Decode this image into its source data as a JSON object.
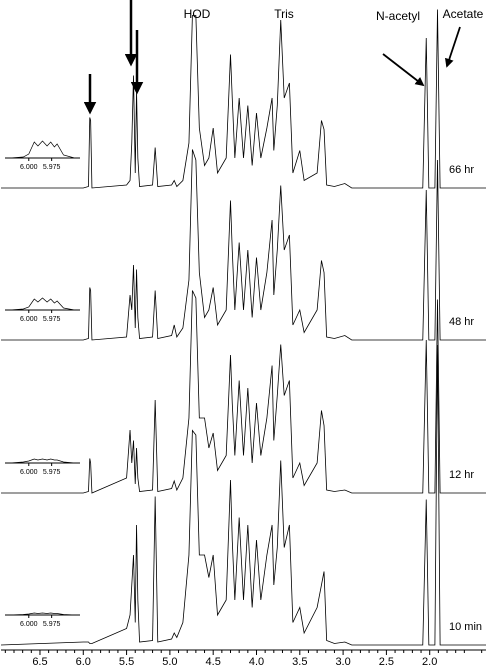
{
  "chart_data": {
    "type": "line",
    "annotations": [
      "HOD",
      "Tris",
      "N-acetyl",
      "Acetate"
    ],
    "xlim": [
      6.95,
      1.35
    ],
    "xticks": [
      6.5,
      {
        "value": 6,
        "label": "6.0"
      },
      5.5,
      {
        "value": 5,
        "label": "5.0"
      },
      4.5,
      {
        "value": 4,
        "label": "4.0"
      },
      3.5,
      {
        "value": 3,
        "label": "3.0"
      },
      2.5,
      {
        "value": 2,
        "label": "2.0"
      }
    ],
    "ylim": [
      0,
      100
    ],
    "inset": {
      "xlim": [
        6.026,
        5.944
      ],
      "ylim": [
        0,
        20
      ],
      "xticks": [
        {
          "value": 6,
          "label": "6.000"
        },
        5.975
      ],
      "x": [
        6.02,
        6.006,
        6.0,
        5.997,
        5.994,
        5.99,
        5.985,
        5.98,
        5.976,
        5.972,
        5.969,
        5.962,
        5.95
      ]
    },
    "series": [
      {
        "name": "66 hr",
        "color": "#000000",
        "x": [
          6.95,
          6.0,
          5.94,
          5.925,
          5.915,
          5.9,
          5.5,
          5.46,
          5.44,
          5.42,
          5.4,
          5.385,
          5.37,
          5.35,
          5.2,
          5.17,
          5.14,
          4.98,
          4.95,
          4.92,
          4.85,
          4.78,
          4.74,
          4.7,
          4.66,
          4.6,
          4.55,
          4.5,
          4.45,
          4.35,
          4.3,
          4.28,
          4.25,
          4.2,
          4.15,
          4.1,
          4.05,
          4.0,
          3.95,
          3.88,
          3.82,
          3.8,
          3.76,
          3.72,
          3.68,
          3.62,
          3.58,
          3.5,
          3.45,
          3.3,
          3.25,
          3.22,
          3.19,
          3.1,
          2.98,
          2.9,
          2.08,
          2.04,
          2.01,
          1.94,
          1.91,
          1.88,
          1.35
        ],
        "values": [
          0,
          0,
          1,
          47,
          45,
          0,
          2,
          5,
          30,
          75,
          10,
          65,
          20,
          1,
          2,
          27,
          1,
          2,
          5,
          1,
          5,
          30,
          115,
          115,
          40,
          15,
          20,
          40,
          10,
          20,
          89,
          60,
          20,
          60,
          20,
          55,
          15,
          50,
          20,
          40,
          60,
          25,
          55,
          112,
          60,
          70,
          10,
          25,
          5,
          10,
          45,
          39,
          2,
          1,
          3,
          0,
          0,
          100,
          0,
          0,
          119,
          0,
          0
        ],
        "inset_values": [
          0,
          1,
          4,
          10,
          16,
          12,
          17,
          12,
          16,
          11,
          14,
          3,
          0
        ]
      },
      {
        "name": "48 hr",
        "color": "#000000",
        "x": [
          6.95,
          6.0,
          5.94,
          5.925,
          5.915,
          5.9,
          5.5,
          5.46,
          5.44,
          5.42,
          5.4,
          5.385,
          5.37,
          5.35,
          5.2,
          5.17,
          5.14,
          4.98,
          4.95,
          4.92,
          4.85,
          4.78,
          4.74,
          4.7,
          4.66,
          4.6,
          4.55,
          4.5,
          4.45,
          4.35,
          4.3,
          4.28,
          4.25,
          4.2,
          4.15,
          4.1,
          4.05,
          4.0,
          3.95,
          3.88,
          3.82,
          3.8,
          3.76,
          3.72,
          3.68,
          3.62,
          3.58,
          3.5,
          3.45,
          3.3,
          3.25,
          3.22,
          3.19,
          3.1,
          2.98,
          2.9,
          2.08,
          2.04,
          2.01,
          1.94,
          1.91,
          1.88,
          1.35
        ],
        "values": [
          0,
          0,
          1,
          35,
          33,
          0,
          2,
          30,
          20,
          50,
          8,
          47,
          15,
          1,
          2,
          33,
          1,
          3,
          10,
          2,
          8,
          40,
          127,
          120,
          45,
          15,
          20,
          35,
          10,
          20,
          93,
          60,
          20,
          65,
          20,
          60,
          15,
          55,
          20,
          45,
          80,
          30,
          60,
          103,
          60,
          70,
          10,
          20,
          5,
          20,
          53,
          45,
          2,
          1,
          3,
          0,
          0,
          100,
          0,
          0,
          120,
          0,
          0
        ],
        "inset_values": [
          0,
          1,
          3,
          7,
          11,
          8,
          12,
          8,
          11,
          7,
          9,
          2,
          0
        ]
      },
      {
        "name": "12 hr",
        "color": "#000000",
        "x": [
          6.95,
          6.0,
          5.94,
          5.925,
          5.915,
          5.9,
          5.5,
          5.46,
          5.44,
          5.42,
          5.4,
          5.385,
          5.37,
          5.35,
          5.2,
          5.17,
          5.14,
          4.98,
          4.95,
          4.92,
          4.85,
          4.78,
          4.74,
          4.7,
          4.66,
          4.6,
          4.55,
          4.5,
          4.45,
          4.35,
          4.3,
          4.28,
          4.25,
          4.2,
          4.15,
          4.1,
          4.05,
          4.0,
          3.95,
          3.88,
          3.82,
          3.8,
          3.76,
          3.72,
          3.68,
          3.62,
          3.58,
          3.5,
          3.45,
          3.3,
          3.25,
          3.22,
          3.19,
          3.1,
          2.98,
          2.9,
          2.08,
          2.04,
          2.01,
          1.94,
          1.91,
          1.88,
          1.35
        ],
        "values": [
          0,
          0,
          1,
          23,
          20,
          0,
          10,
          42,
          20,
          35,
          6,
          30,
          10,
          1,
          2,
          62,
          1,
          3,
          8,
          2,
          10,
          50,
          135,
          130,
          50,
          50,
          30,
          40,
          15,
          25,
          92,
          60,
          25,
          75,
          25,
          70,
          20,
          60,
          25,
          50,
          85,
          35,
          65,
          99,
          65,
          75,
          10,
          20,
          5,
          20,
          55,
          45,
          2,
          1,
          2,
          0,
          0,
          102,
          0,
          0,
          129,
          0,
          0
        ],
        "inset_values": [
          0,
          1,
          2,
          3,
          4,
          3,
          4,
          3,
          4,
          3,
          3,
          1,
          0
        ]
      },
      {
        "name": "10 min",
        "color": "#000000",
        "x": [
          6.95,
          6.0,
          5.94,
          5.925,
          5.915,
          5.9,
          5.5,
          5.46,
          5.44,
          5.42,
          5.4,
          5.385,
          5.37,
          5.35,
          5.2,
          5.17,
          5.14,
          4.98,
          4.95,
          4.92,
          4.85,
          4.78,
          4.74,
          4.7,
          4.66,
          4.6,
          4.55,
          4.5,
          4.45,
          4.35,
          4.3,
          4.28,
          4.25,
          4.2,
          4.15,
          4.1,
          4.05,
          4.0,
          3.95,
          3.88,
          3.82,
          3.8,
          3.76,
          3.72,
          3.68,
          3.62,
          3.58,
          3.5,
          3.45,
          3.3,
          3.25,
          3.22,
          3.19,
          3.1,
          2.98,
          2.9,
          2.08,
          2.04,
          2.01,
          1.94,
          1.91,
          1.88,
          1.35
        ],
        "values": [
          0,
          2,
          2,
          1,
          1,
          1,
          11,
          20,
          40,
          60,
          15,
          80,
          30,
          2,
          3,
          99,
          2,
          4,
          8,
          5,
          15,
          60,
          143,
          140,
          60,
          60,
          45,
          60,
          20,
          30,
          110,
          70,
          30,
          85,
          30,
          80,
          25,
          70,
          30,
          60,
          80,
          40,
          65,
          123,
          65,
          80,
          15,
          25,
          8,
          25,
          40,
          49,
          3,
          1,
          2,
          0,
          0,
          97,
          0,
          0,
          200,
          0,
          0
        ],
        "inset_values": [
          0,
          0.5,
          1,
          1.5,
          2,
          1.5,
          2,
          1.5,
          2,
          1.5,
          1.5,
          0.5,
          0
        ]
      }
    ]
  }
}
